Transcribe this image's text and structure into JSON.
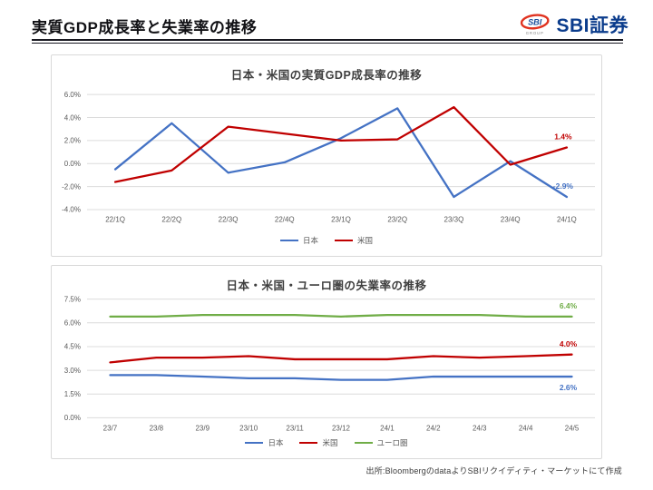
{
  "header": {
    "title": "実質GDP成長率と失業率の推移"
  },
  "logo": {
    "icon_text": "SBI",
    "icon_sub": "GROUP",
    "brand": "SBI証券",
    "brand_color": "#0b3c8c",
    "icon_text_color": "#1b4f9b",
    "accent_red": "#e0321f"
  },
  "footer": {
    "source": "出所:BloombergのdataよりSBIリクイディティ・マーケットにて作成"
  },
  "chart_data": [
    {
      "type": "line",
      "title": "日本・米国の実質GDP成長率の推移",
      "categories": [
        "22/1Q",
        "22/2Q",
        "22/3Q",
        "22/4Q",
        "23/1Q",
        "23/2Q",
        "23/3Q",
        "23/4Q",
        "24/1Q"
      ],
      "series": [
        {
          "name": "日本",
          "color": "#4472c4",
          "values": [
            -0.5,
            3.5,
            -0.8,
            0.1,
            2.2,
            4.8,
            -2.9,
            0.2,
            -2.9
          ],
          "end_label": "-2.9%",
          "end_label_side": "above"
        },
        {
          "name": "米国",
          "color": "#c00000",
          "values": [
            -1.6,
            -0.6,
            3.2,
            2.6,
            2.0,
            2.1,
            4.9,
            -0.1,
            1.4
          ],
          "end_label": "1.4%",
          "end_label_side": "above"
        }
      ],
      "xlabel": "",
      "ylabel": "",
      "ylim": [
        -4.0,
        6.0
      ],
      "ystep": 2.0,
      "ytick_labels": [
        "6.0%",
        "4.0%",
        "2.0%",
        "0.0%",
        "-2.0%",
        "-4.0%"
      ],
      "grid": true,
      "legend_position": "bottom"
    },
    {
      "type": "line",
      "title": "日本・米国・ユーロ圏の失業率の推移",
      "categories": [
        "23/7",
        "23/8",
        "23/9",
        "23/10",
        "23/11",
        "23/12",
        "24/1",
        "24/2",
        "24/3",
        "24/4",
        "24/5"
      ],
      "series": [
        {
          "name": "日本",
          "color": "#4472c4",
          "values": [
            2.7,
            2.7,
            2.6,
            2.5,
            2.5,
            2.4,
            2.4,
            2.6,
            2.6,
            2.6,
            2.6
          ],
          "end_label": "2.6%",
          "end_label_side": "below"
        },
        {
          "name": "米国",
          "color": "#c00000",
          "values": [
            3.5,
            3.8,
            3.8,
            3.9,
            3.7,
            3.7,
            3.7,
            3.9,
            3.8,
            3.9,
            4.0
          ],
          "end_label": "4.0%",
          "end_label_side": "above"
        },
        {
          "name": "ユーロ圏",
          "color": "#70ad47",
          "values": [
            6.4,
            6.4,
            6.5,
            6.5,
            6.5,
            6.4,
            6.5,
            6.5,
            6.5,
            6.4,
            6.4
          ],
          "end_label": "6.4%",
          "end_label_side": "above"
        }
      ],
      "xlabel": "",
      "ylabel": "",
      "ylim": [
        0.0,
        7.5
      ],
      "ystep": 1.5,
      "ytick_labels": [
        "7.5%",
        "6.0%",
        "4.5%",
        "3.0%",
        "1.5%",
        "0.0%"
      ],
      "grid": true,
      "legend_position": "bottom"
    }
  ]
}
